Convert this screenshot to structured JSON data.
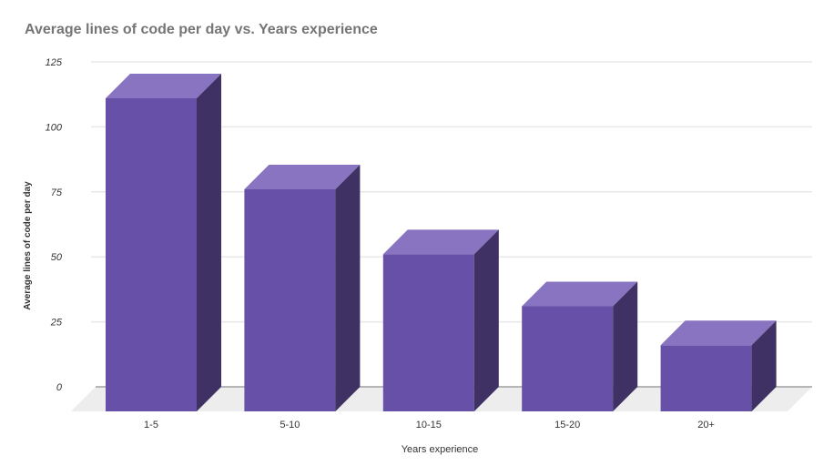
{
  "title": "Average lines of code per day vs. Years experience",
  "colors": {
    "title": "#757575",
    "text": "#333333",
    "bar_front": "#6650a8",
    "bar_top": "#8874c0",
    "bar_side": "#3f3163",
    "floor": "#ededed",
    "gridline": "#e8e8e8",
    "zero_line": "#a0a0a0",
    "background": "#ffffff"
  },
  "chart_data": {
    "type": "bar",
    "style": "3d-column",
    "title": "Average lines of code per day vs. Years experience",
    "categories": [
      "1-5",
      "5-10",
      "10-15",
      "15-20",
      "20+"
    ],
    "values": [
      111,
      76,
      51,
      31,
      16
    ],
    "xlabel": "Years experience",
    "ylabel": "Average lines of code per day",
    "ylim": [
      0,
      125
    ],
    "yticks": [
      0,
      25,
      50,
      75,
      100,
      125
    ],
    "grid": true,
    "legend": false
  }
}
